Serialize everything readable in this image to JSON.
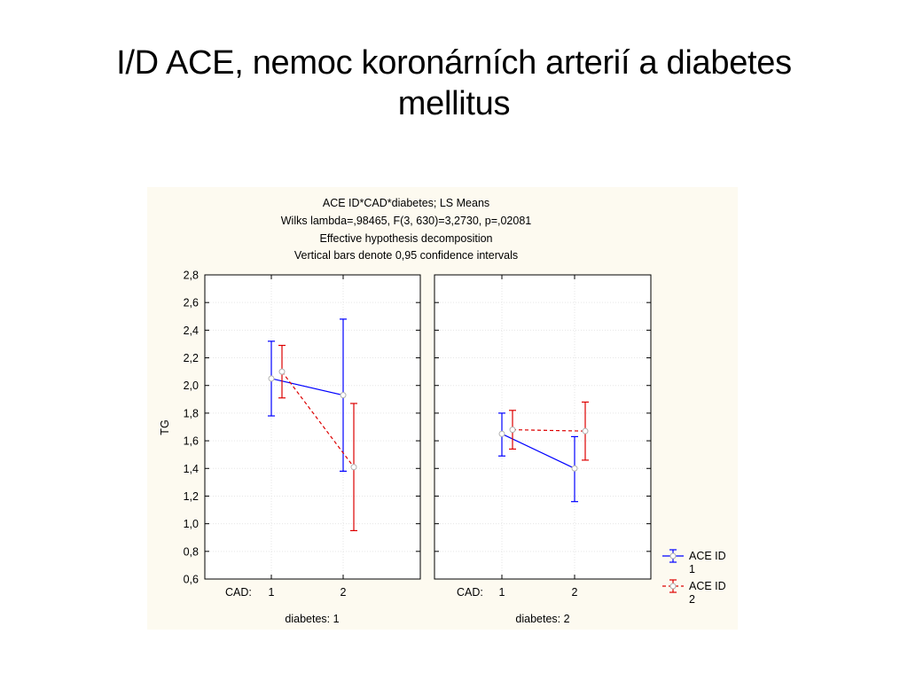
{
  "slide": {
    "title_line1": "I/D ACE, nemoc koronárních arterií a diabetes",
    "title_line2": "mellitus"
  },
  "chart_data": {
    "type": "line",
    "header_lines": [
      "ACE ID*CAD*diabetes; LS Means",
      "Wilks lambda=,98465, F(3, 630)=3,2730, p=,02081",
      "Effective hypothesis decomposition",
      "Vertical bars denote 0,95 confidence intervals"
    ],
    "ylabel": "TG",
    "ylim": [
      0.6,
      2.8
    ],
    "yticks": [
      "2,8",
      "2,6",
      "2,4",
      "2,2",
      "2,0",
      "1,8",
      "1,6",
      "1,4",
      "1,2",
      "1,0",
      "0,8",
      "0,6"
    ],
    "ytick_values": [
      2.8,
      2.6,
      2.4,
      2.2,
      2.0,
      1.8,
      1.6,
      1.4,
      1.2,
      1.0,
      0.8,
      0.6
    ],
    "x_factor_label": "CAD:",
    "categories": [
      "1",
      "2"
    ],
    "grid": true,
    "legend_position": "bottom-right",
    "panels": [
      {
        "label": "diabetes: 1",
        "series": [
          {
            "name_line1": "ACE ID",
            "name_line2": "1",
            "color": "#0000ff",
            "dashed": false,
            "mean": [
              2.05,
              1.93
            ],
            "ci_low": [
              1.78,
              1.38
            ],
            "ci_high": [
              2.32,
              2.48
            ]
          },
          {
            "name_line1": "ACE ID",
            "name_line2": "2",
            "color": "#dd0000",
            "dashed": true,
            "mean": [
              2.1,
              1.41
            ],
            "ci_low": [
              1.91,
              0.95
            ],
            "ci_high": [
              2.29,
              1.87
            ]
          }
        ]
      },
      {
        "label": "diabetes: 2",
        "series": [
          {
            "name_line1": "ACE ID",
            "name_line2": "1",
            "color": "#0000ff",
            "dashed": false,
            "mean": [
              1.65,
              1.4
            ],
            "ci_low": [
              1.49,
              1.16
            ],
            "ci_high": [
              1.8,
              1.63
            ]
          },
          {
            "name_line1": "ACE ID",
            "name_line2": "2",
            "color": "#dd0000",
            "dashed": true,
            "mean": [
              1.68,
              1.67
            ],
            "ci_low": [
              1.54,
              1.46
            ],
            "ci_high": [
              1.82,
              1.88
            ]
          }
        ]
      }
    ]
  }
}
